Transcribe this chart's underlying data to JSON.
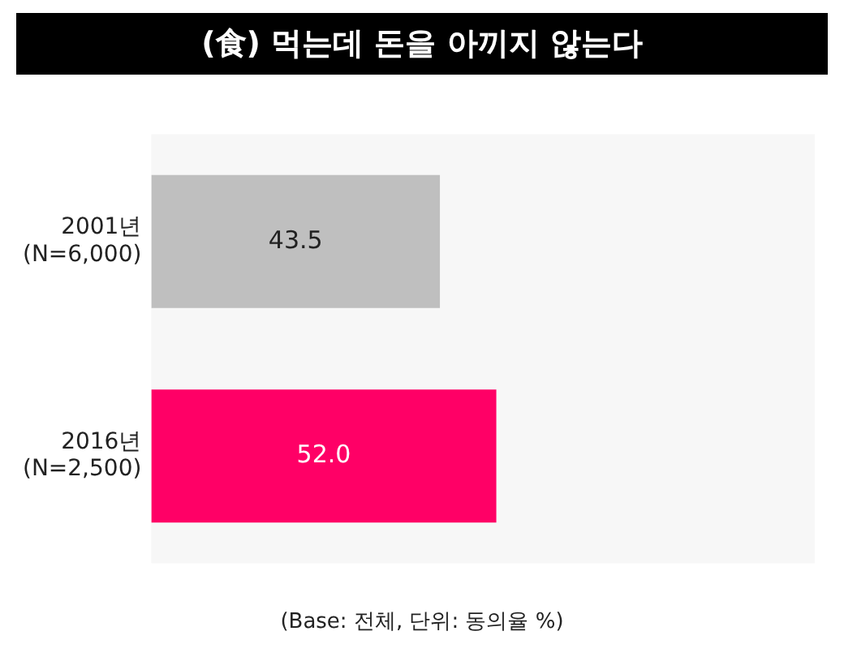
{
  "chart_data": {
    "type": "bar",
    "orientation": "horizontal",
    "title": "(食) 먹는데 돈을 아끼지 않는다",
    "categories": [
      "2001년\n(N=6,000)",
      "2016년\n(N=2,500)"
    ],
    "values": [
      43.5,
      52.0
    ],
    "colors": [
      "#bfbfbf",
      "#ff0066"
    ],
    "value_labels": [
      "43.5",
      "52.0"
    ],
    "xlim": [
      0,
      100
    ],
    "tick_labels": "y",
    "annotations": [
      "(Base: 전체, 단위: 동의율 %)"
    ]
  }
}
